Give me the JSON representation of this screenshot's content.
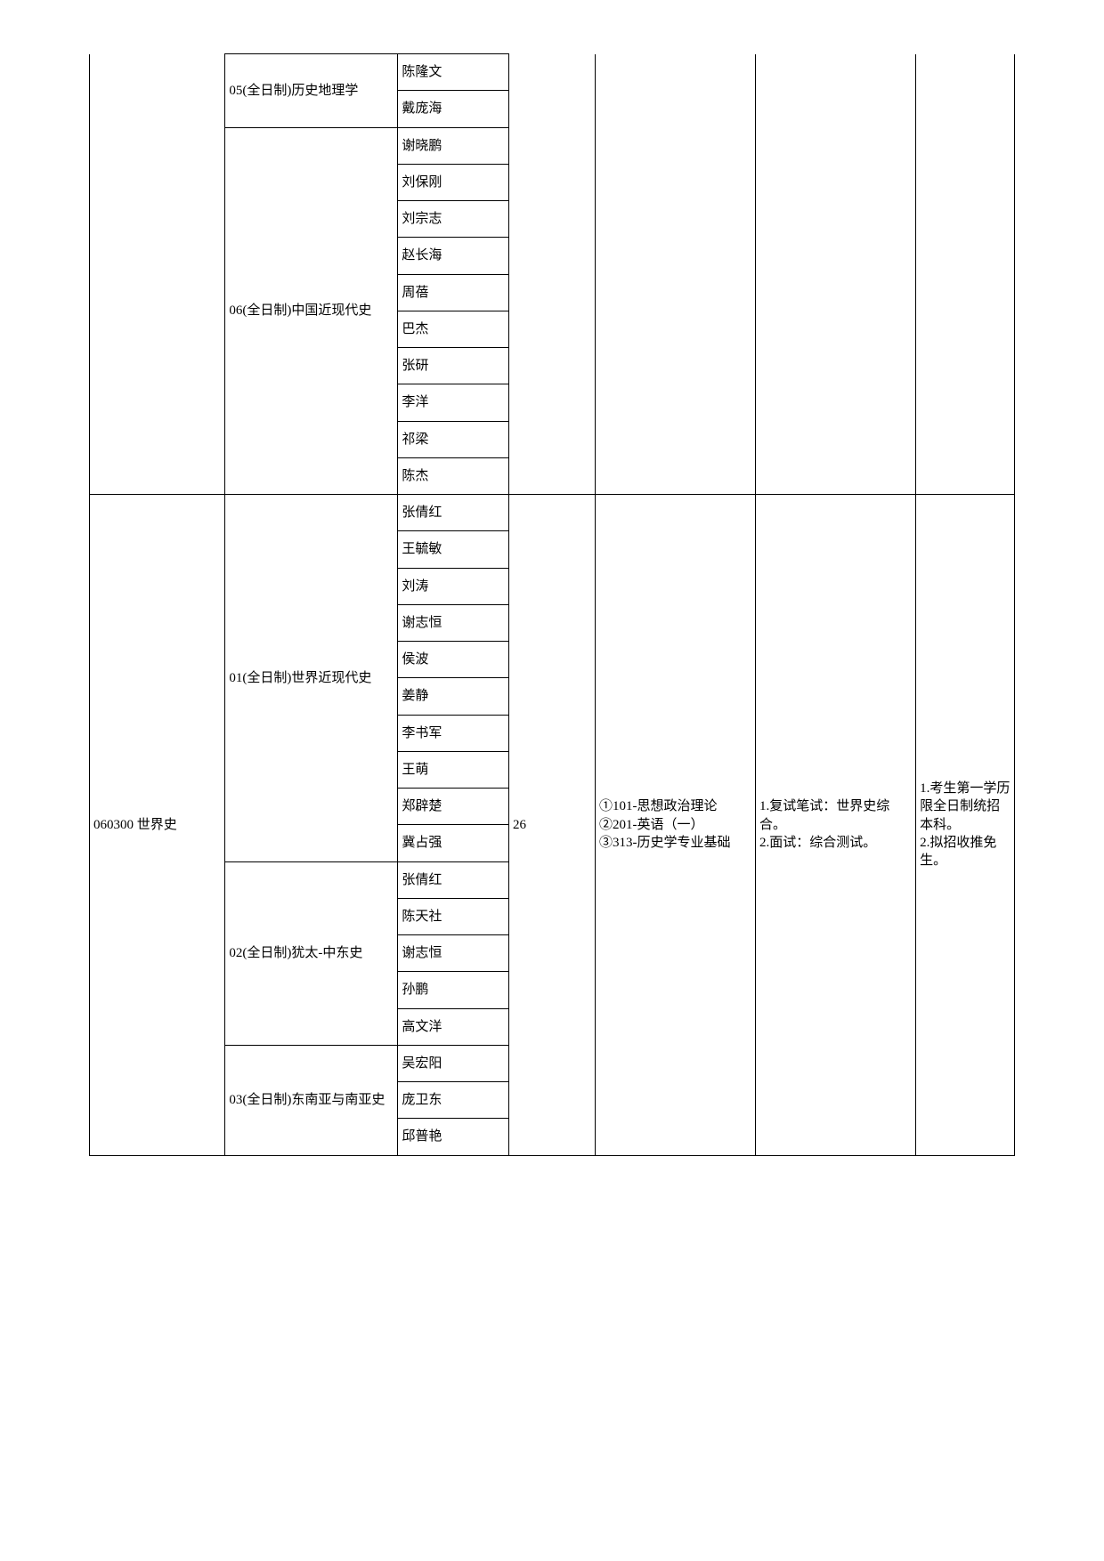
{
  "section1": {
    "major_code": "",
    "direction05": {
      "label": "05(全日制)历史地理学",
      "names": [
        "陈隆文",
        "戴庞海"
      ]
    },
    "direction06": {
      "label": "06(全日制)中国近现代史",
      "names": [
        "谢晓鹏",
        "刘保刚",
        "刘宗志",
        "赵长海",
        "周蓓",
        "巴杰",
        "张研",
        "李洋",
        "祁梁",
        "陈杰"
      ]
    },
    "quota": "",
    "exams": "",
    "retest": "",
    "notes": ""
  },
  "section2": {
    "major_code": "060300 世界史",
    "direction01": {
      "label": "01(全日制)世界近现代史",
      "names": [
        "张倩红",
        "王毓敏",
        "刘涛",
        "谢志恒",
        "侯波",
        "姜静",
        "李书军",
        "王萌",
        "郑辟楚",
        "冀占强"
      ]
    },
    "direction02": {
      "label": "02(全日制)犹太-中东史",
      "names": [
        "张倩红",
        "陈天社",
        "谢志恒",
        "孙鹏",
        "高文洋"
      ]
    },
    "direction03": {
      "label": "03(全日制)东南亚与南亚史",
      "names": [
        "吴宏阳",
        "庞卫东",
        "邱普艳"
      ]
    },
    "quota": "26",
    "exams": "①101-思想政治理论\n②201-英语（一）\n③313-历史学专业基础",
    "retest": "1.复试笔试：世界史综合。\n2.面试：综合测试。",
    "notes": "1.考生第一学历限全日制统招本科。\n2.拟招收推免生。"
  },
  "style": {
    "border_color": "#000000",
    "background_color": "#ffffff",
    "font_size": 15,
    "font_family": "SimSun"
  }
}
